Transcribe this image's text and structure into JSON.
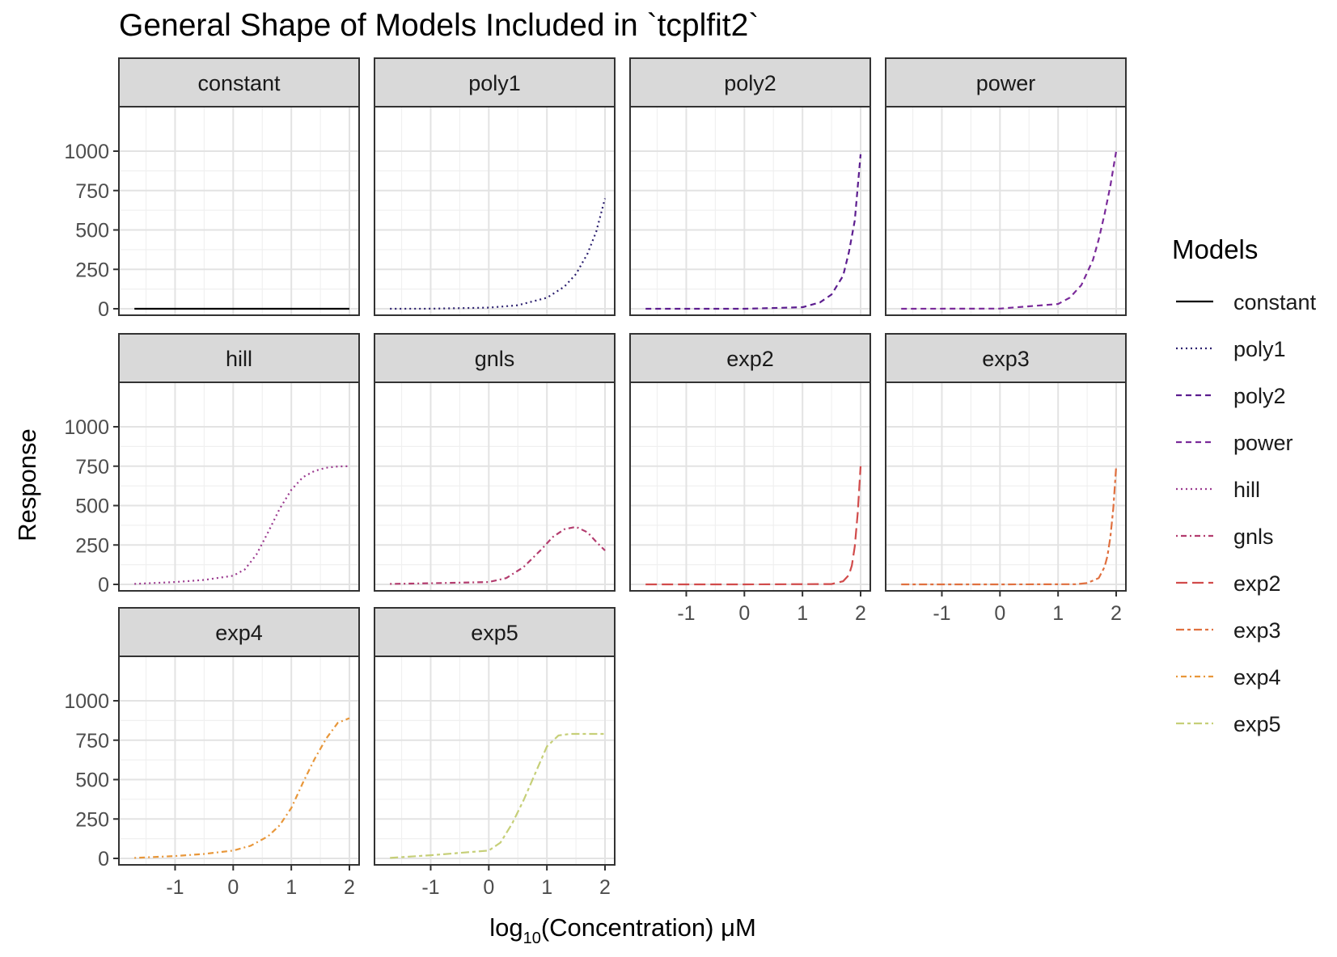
{
  "chart_data": {
    "type": "line",
    "title": "General Shape of Models Included in `tcplfit2`",
    "xlabel": "log10(Concentration) μM",
    "xlabel_parts": {
      "base": "log",
      "subscript": "10",
      "rest": "(Concentration) μM"
    },
    "ylabel": "Response",
    "xlim": [
      -1.8,
      2.0
    ],
    "ylim": [
      0,
      1000
    ],
    "x_ticks": [
      -1,
      0,
      1,
      2
    ],
    "x_tick_labels": [
      "-1",
      "0",
      "1",
      "2"
    ],
    "y_ticks": [
      0,
      250,
      500,
      750,
      1000
    ],
    "y_tick_labels": [
      "0",
      "250",
      "500",
      "750",
      "1000"
    ],
    "grid": true,
    "legend": {
      "title": "Models",
      "placement": "right",
      "entries": [
        "constant",
        "poly1",
        "poly2",
        "power",
        "hill",
        "gnls",
        "exp2",
        "exp3",
        "exp4",
        "exp5"
      ]
    },
    "facets": [
      "constant",
      "poly1",
      "poly2",
      "power",
      "hill",
      "gnls",
      "exp2",
      "exp3",
      "exp4",
      "exp5"
    ],
    "series": [
      {
        "name": "constant",
        "color": "#000000",
        "dash": "solid",
        "x": [
          -1.7,
          -1.0,
          0.0,
          1.0,
          2.0
        ],
        "y": [
          0,
          0,
          0,
          0,
          0
        ]
      },
      {
        "name": "poly1",
        "color": "#2b1f6e",
        "dash": "dotted",
        "x": [
          -1.7,
          -1.0,
          0.0,
          0.5,
          1.0,
          1.3,
          1.5,
          1.7,
          1.85,
          2.0
        ],
        "y": [
          0.1,
          0.7,
          7,
          22,
          70,
          140,
          220,
          350,
          490,
          700
        ]
      },
      {
        "name": "poly2",
        "color": "#5c1d8f",
        "dash": "dashed",
        "x": [
          -1.7,
          0.0,
          1.0,
          1.3,
          1.5,
          1.7,
          1.8,
          1.9,
          2.0
        ],
        "y": [
          0,
          0.1,
          10,
          40,
          90,
          210,
          360,
          560,
          980
        ]
      },
      {
        "name": "power",
        "color": "#7a2a9a",
        "dash": "dashed",
        "x": [
          -1.7,
          0.0,
          1.0,
          1.2,
          1.4,
          1.6,
          1.7,
          1.8,
          1.9,
          2.0
        ],
        "y": [
          0,
          1,
          30,
          70,
          150,
          310,
          440,
          600,
          780,
          1000
        ]
      },
      {
        "name": "hill",
        "color": "#9b3a8f",
        "dash": "dotted",
        "x": [
          -1.7,
          -1.0,
          -0.5,
          0.0,
          0.2,
          0.4,
          0.6,
          0.8,
          1.0,
          1.2,
          1.4,
          1.6,
          1.8,
          2.0
        ],
        "y": [
          3,
          15,
          28,
          55,
          95,
          190,
          330,
          480,
          600,
          680,
          720,
          740,
          748,
          750
        ]
      },
      {
        "name": "gnls",
        "color": "#b33c6e",
        "dash": "dotdash",
        "x": [
          -1.7,
          -1.0,
          0.0,
          0.3,
          0.6,
          0.9,
          1.1,
          1.3,
          1.5,
          1.7,
          1.85,
          2.0
        ],
        "y": [
          3,
          7,
          15,
          40,
          110,
          220,
          300,
          350,
          365,
          330,
          270,
          215
        ]
      },
      {
        "name": "exp2",
        "color": "#d14b4b",
        "dash": "longdash",
        "x": [
          -1.7,
          0.0,
          1.5,
          1.7,
          1.8,
          1.85,
          1.9,
          1.95,
          2.0
        ],
        "y": [
          0,
          0,
          2,
          20,
          60,
          120,
          240,
          450,
          750
        ]
      },
      {
        "name": "exp3",
        "color": "#e0703f",
        "dash": "twodash",
        "x": [
          -1.7,
          0.0,
          1.3,
          1.5,
          1.7,
          1.8,
          1.85,
          1.9,
          1.95,
          2.0
        ],
        "y": [
          0,
          0,
          1,
          8,
          40,
          110,
          180,
          300,
          480,
          750
        ]
      },
      {
        "name": "exp4",
        "color": "#e8973a",
        "dash": "dotdash",
        "x": [
          -1.7,
          -1.0,
          -0.5,
          0.0,
          0.3,
          0.6,
          0.8,
          1.0,
          1.2,
          1.4,
          1.6,
          1.8,
          2.0
        ],
        "y": [
          3,
          15,
          28,
          50,
          80,
          140,
          210,
          320,
          480,
          630,
          760,
          860,
          890
        ]
      },
      {
        "name": "exp5",
        "color": "#c6cf78",
        "dash": "twodash",
        "x": [
          -1.7,
          -1.0,
          -0.5,
          0.0,
          0.2,
          0.4,
          0.6,
          0.8,
          1.0,
          1.2,
          1.4,
          1.6,
          1.8,
          2.0
        ],
        "y": [
          3,
          20,
          35,
          50,
          100,
          220,
          370,
          540,
          710,
          780,
          790,
          790,
          790,
          790
        ]
      }
    ]
  }
}
